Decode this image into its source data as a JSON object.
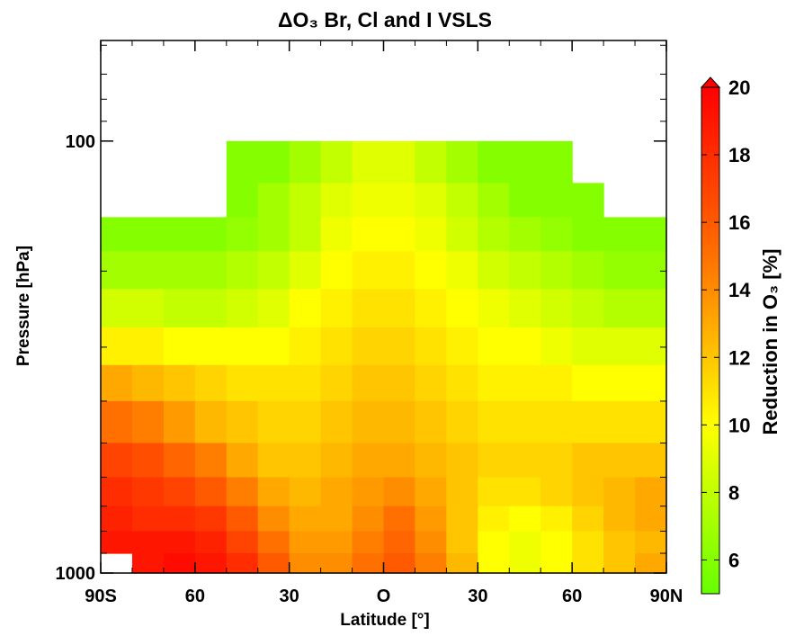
{
  "chart_data": {
    "type": "heatmap",
    "title": "ΔO₃ Br, Cl and I VSLS",
    "xlabel": "Latitude [°]",
    "ylabel": "Pressure [hPa]",
    "colorbar_label": "Reduction in O₃ [%]",
    "xlim": [
      -90,
      90
    ],
    "xticks": [
      {
        "value": -90,
        "label": "90S"
      },
      {
        "value": -60,
        "label": "60"
      },
      {
        "value": -30,
        "label": "30"
      },
      {
        "value": 0,
        "label": "O"
      },
      {
        "value": 30,
        "label": "30"
      },
      {
        "value": 60,
        "label": "60"
      },
      {
        "value": 90,
        "label": "90N"
      }
    ],
    "x_minor_ticks": [
      -80,
      -70,
      -50,
      -40,
      -20,
      -10,
      10,
      20,
      40,
      50,
      70,
      80
    ],
    "ylim": [
      1000,
      58.5
    ],
    "y_log": true,
    "yticks": [
      100,
      1000
    ],
    "y_minor_ticks": [
      60,
      70,
      80,
      90,
      200,
      300,
      400,
      500,
      600,
      700,
      800,
      900
    ],
    "x_edges": [
      -90,
      -80,
      -70,
      -60,
      -50,
      -40,
      -30,
      -20,
      -10,
      0,
      10,
      20,
      30,
      40,
      50,
      60,
      70,
      80,
      90
    ],
    "y_edges": [
      100,
      125,
      150,
      180,
      220,
      270,
      330,
      400,
      500,
      600,
      700,
      800,
      900,
      1000
    ],
    "z": [
      [
        null,
        null,
        null,
        null,
        6,
        6,
        7,
        8,
        9,
        9,
        8,
        7,
        6,
        6,
        6,
        null,
        null,
        null
      ],
      [
        null,
        null,
        null,
        null,
        6,
        7,
        8,
        9,
        9.5,
        9.5,
        9,
        8,
        7,
        6,
        6,
        6,
        null,
        null
      ],
      [
        6,
        6,
        6,
        6,
        6.5,
        7,
        8,
        9.5,
        10,
        10,
        9.5,
        8.5,
        7.5,
        7,
        6.5,
        6,
        6,
        6
      ],
      [
        7,
        7,
        7,
        7,
        7.5,
        8,
        9,
        10,
        10.5,
        10.5,
        10,
        9.5,
        8.5,
        8,
        7.5,
        7,
        6.5,
        6.5
      ],
      [
        8.5,
        8.5,
        8,
        8,
        8.5,
        9,
        10,
        10.5,
        11,
        11,
        10.5,
        10,
        9.5,
        9,
        8.5,
        8,
        7.5,
        7.5
      ],
      [
        10.5,
        10.5,
        10,
        10,
        10,
        10,
        10.5,
        11,
        11.5,
        11.5,
        11,
        10.5,
        10,
        10,
        9.5,
        9,
        9,
        9
      ],
      [
        13,
        12.5,
        12,
        11.5,
        11,
        11,
        11,
        11.5,
        12,
        12,
        11.5,
        11,
        10.5,
        10.5,
        10.5,
        10,
        10,
        10
      ],
      [
        15,
        14.5,
        13.5,
        12.5,
        12,
        11.5,
        11.5,
        12,
        12.5,
        12.5,
        12,
        11.5,
        11,
        11,
        11,
        11,
        11,
        11
      ],
      [
        17,
        16.5,
        15.5,
        14.5,
        13,
        12,
        12,
        12.5,
        13,
        13,
        12.5,
        12,
        11.5,
        11.5,
        11.5,
        12,
        12,
        12
      ],
      [
        18,
        17.5,
        17,
        16,
        14.5,
        13,
        12.5,
        13,
        13.5,
        14,
        13,
        12,
        11,
        11,
        11.5,
        12,
        12.5,
        13
      ],
      [
        18.5,
        18,
        18,
        17.5,
        16,
        14,
        13,
        13,
        14,
        15,
        13.5,
        12,
        10.5,
        10,
        10.5,
        11.5,
        12.5,
        13
      ],
      [
        19,
        19,
        19,
        18.5,
        17,
        15,
        13.5,
        13.5,
        14.5,
        15.5,
        14,
        12,
        10,
        9.5,
        10,
        11,
        12,
        12.5
      ],
      [
        null,
        19,
        19.5,
        19,
        18,
        16,
        14,
        14,
        15,
        16,
        14.5,
        12.5,
        10,
        9.5,
        10,
        11,
        12,
        13
      ]
    ],
    "clim": [
      5,
      20
    ],
    "cticks": [
      6,
      8,
      10,
      12,
      14,
      16,
      18,
      20
    ],
    "colorscale": [
      "#66ff00",
      "#ffff00",
      "#ff7000",
      "#ff0000"
    ]
  }
}
